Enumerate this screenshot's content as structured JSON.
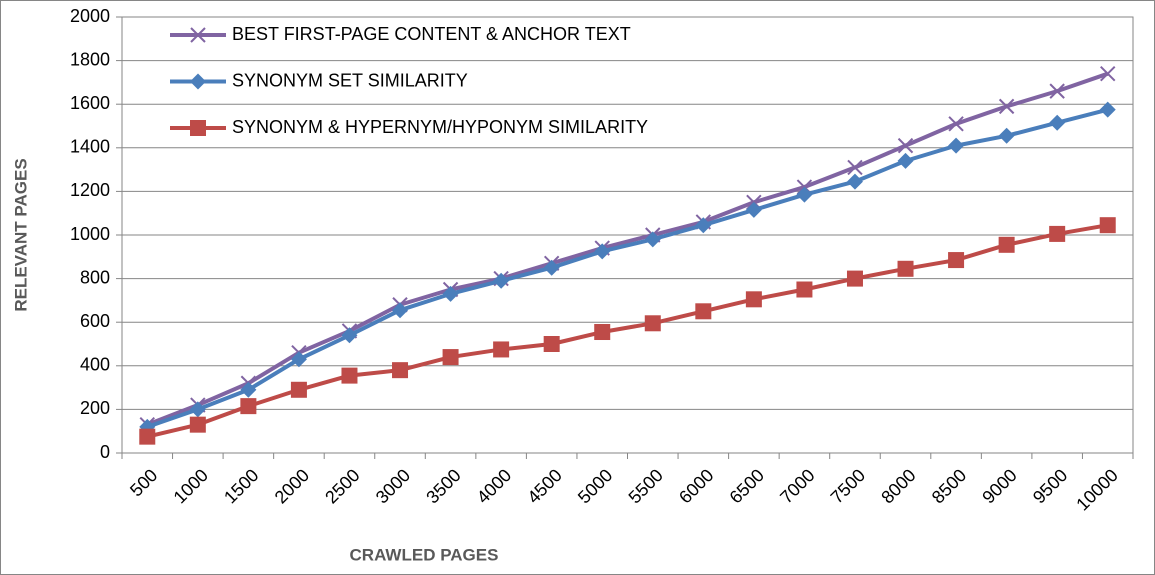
{
  "chart_data": {
    "type": "line",
    "x_label": "CRAWLED PAGES",
    "y_label": "RELEVANT PAGES",
    "categories": [
      "500",
      "1000",
      "1500",
      "2000",
      "2500",
      "3000",
      "3500",
      "4000",
      "4500",
      "5000",
      "5500",
      "6000",
      "6500",
      "7000",
      "7500",
      "8000",
      "8500",
      "9000",
      "9500",
      "10000"
    ],
    "series": [
      {
        "name": "BEST FIRST-PAGE CONTENT & ANCHOR TEXT",
        "color": "#8064a2",
        "marker": "x",
        "values": [
          130,
          220,
          320,
          460,
          560,
          680,
          750,
          800,
          870,
          940,
          1000,
          1060,
          1150,
          1220,
          1310,
          1410,
          1510,
          1590,
          1660,
          1740
        ]
      },
      {
        "name": "SYNONYM SET SIMILARITY",
        "color": "#4a7ebb",
        "marker": "diamond",
        "values": [
          120,
          200,
          290,
          430,
          540,
          655,
          730,
          790,
          850,
          925,
          980,
          1045,
          1115,
          1185,
          1245,
          1340,
          1410,
          1455,
          1515,
          1575
        ]
      },
      {
        "name": "SYNONYM & HYPERNYM/HYPONYM SIMILARITY",
        "color": "#be4b48",
        "marker": "square",
        "values": [
          75,
          130,
          215,
          290,
          355,
          380,
          440,
          475,
          500,
          555,
          595,
          650,
          705,
          750,
          800,
          845,
          885,
          955,
          1005,
          1045
        ]
      }
    ],
    "ylim": [
      0,
      2000
    ],
    "yticks": [
      0,
      200,
      400,
      600,
      800,
      1000,
      1200,
      1400,
      1600,
      1800,
      2000
    ],
    "grid": true,
    "legend": "upper left"
  }
}
